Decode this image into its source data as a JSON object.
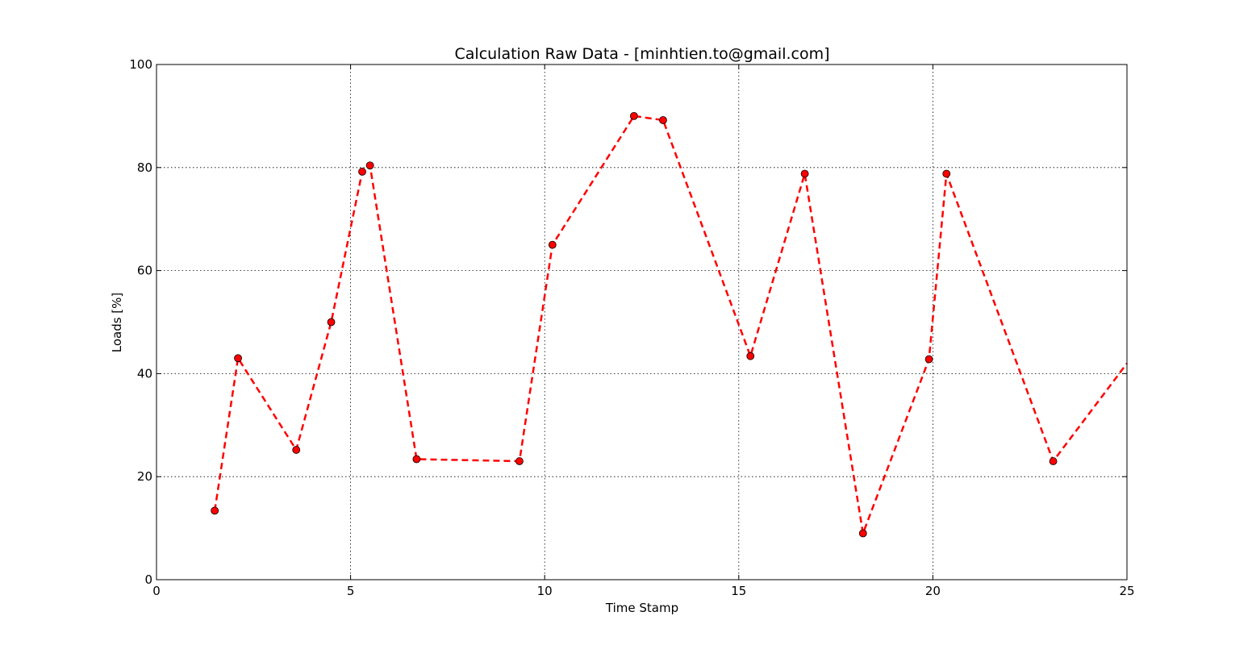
{
  "chart_data": {
    "type": "line",
    "title": "Calculation Raw Data - [minhtien.to@gmail.com]",
    "xlabel": "Time Stamp",
    "ylabel": "Loads [%]",
    "xlim": [
      0,
      25
    ],
    "ylim": [
      0,
      100
    ],
    "xticks": [
      0,
      5,
      10,
      15,
      20,
      25
    ],
    "yticks": [
      0,
      20,
      40,
      60,
      80,
      100
    ],
    "grid": true,
    "line_style": "dashed",
    "line_color": "#ff0000",
    "marker_color": "#ff0000",
    "marker_edge_color": "#000000",
    "series": [
      {
        "x": [
          1.5,
          2.1,
          3.6,
          4.5,
          5.3,
          5.5,
          6.7,
          9.35,
          10.2,
          12.3,
          13.05,
          15.3,
          16.7,
          18.2,
          19.9,
          20.35,
          23.1,
          25.0
        ],
        "y": [
          13.4,
          43.0,
          25.2,
          50.0,
          79.2,
          80.4,
          23.4,
          23.0,
          65.0,
          90.0,
          89.2,
          43.4,
          78.8,
          9.0,
          42.8,
          78.8,
          23.0,
          42.0
        ],
        "markers": [
          true,
          true,
          true,
          true,
          true,
          true,
          true,
          true,
          true,
          true,
          true,
          true,
          true,
          true,
          true,
          true,
          true,
          false
        ]
      }
    ]
  }
}
